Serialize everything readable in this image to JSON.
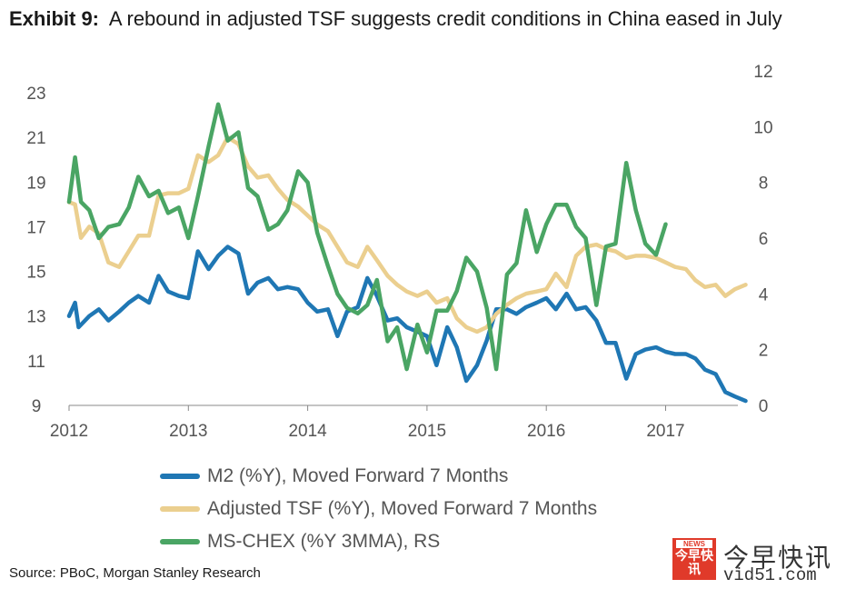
{
  "title": {
    "exhibit": "Exhibit 9:",
    "text": "A rebound in adjusted TSF suggests credit conditions in China eased in July"
  },
  "source": "Source: PBoC, Morgan Stanley Research",
  "watermark": {
    "chinese": "今早快讯",
    "url": "vid51.com",
    "badge_top": "NEWS",
    "badge_text": "今早快讯"
  },
  "chart_data": {
    "type": "line",
    "title": "A rebound in adjusted TSF suggests credit conditions in China eased in July",
    "xlabel": "",
    "ylabel": "",
    "x_ticks": [
      "2012",
      "2013",
      "2014",
      "2015",
      "2016",
      "2017"
    ],
    "xlim": [
      2012.0,
      2017.7
    ],
    "ylim_left": [
      9,
      23
    ],
    "ylim_right": [
      0,
      12
    ],
    "y_ticks_left": [
      9,
      11,
      13,
      15,
      17,
      19,
      21,
      23
    ],
    "y_ticks_right": [
      0,
      2,
      4,
      6,
      8,
      10,
      12
    ],
    "grid": false,
    "legend_position": "bottom",
    "series": [
      {
        "name": "M2 (%Y), Moved Forward 7 Months",
        "axis": "left",
        "color": "#1f77b4",
        "x": [
          2012.0,
          2012.05,
          2012.08,
          2012.17,
          2012.25,
          2012.33,
          2012.42,
          2012.5,
          2012.58,
          2012.67,
          2012.75,
          2012.83,
          2012.92,
          2013.0,
          2013.08,
          2013.17,
          2013.25,
          2013.33,
          2013.42,
          2013.5,
          2013.58,
          2013.67,
          2013.75,
          2013.83,
          2013.92,
          2014.0,
          2014.08,
          2014.17,
          2014.25,
          2014.33,
          2014.42,
          2014.5,
          2014.58,
          2014.67,
          2014.75,
          2014.83,
          2014.92,
          2015.0,
          2015.08,
          2015.17,
          2015.25,
          2015.33,
          2015.42,
          2015.5,
          2015.58,
          2015.67,
          2015.75,
          2015.83,
          2015.92,
          2016.0,
          2016.08,
          2016.17,
          2016.25,
          2016.33,
          2016.42,
          2016.5,
          2016.58,
          2016.67,
          2016.75,
          2016.83,
          2016.92,
          2017.0,
          2017.08,
          2017.17,
          2017.25,
          2017.33,
          2017.42,
          2017.5,
          2017.58,
          2017.67
        ],
        "y": [
          13.0,
          13.6,
          12.5,
          13.0,
          13.3,
          12.8,
          13.2,
          13.6,
          13.9,
          13.6,
          14.8,
          14.1,
          13.9,
          13.8,
          15.9,
          15.1,
          15.7,
          16.1,
          15.8,
          14.0,
          14.5,
          14.7,
          14.2,
          14.3,
          14.2,
          13.6,
          13.2,
          13.3,
          12.1,
          13.2,
          13.4,
          14.7,
          13.9,
          12.8,
          12.9,
          12.5,
          12.3,
          12.1,
          10.8,
          12.5,
          11.6,
          10.1,
          10.8,
          11.9,
          13.3,
          13.3,
          13.1,
          13.4,
          13.6,
          13.8,
          13.3,
          14.0,
          13.3,
          13.4,
          12.8,
          11.8,
          11.8,
          10.2,
          11.3,
          11.5,
          11.6,
          11.4,
          11.3,
          11.3,
          11.1,
          10.6,
          10.4,
          9.6,
          9.4,
          9.2
        ]
      },
      {
        "name": "Adjusted TSF (%Y), Moved Forward 7 Months",
        "axis": "left",
        "color": "#ebcf8f",
        "x": [
          2012.0,
          2012.05,
          2012.1,
          2012.17,
          2012.25,
          2012.33,
          2012.42,
          2012.5,
          2012.58,
          2012.67,
          2012.75,
          2012.83,
          2012.92,
          2013.0,
          2013.08,
          2013.17,
          2013.25,
          2013.33,
          2013.42,
          2013.5,
          2013.58,
          2013.67,
          2013.75,
          2013.83,
          2013.92,
          2014.0,
          2014.08,
          2014.17,
          2014.25,
          2014.33,
          2014.42,
          2014.5,
          2014.58,
          2014.67,
          2014.75,
          2014.83,
          2014.92,
          2015.0,
          2015.08,
          2015.17,
          2015.25,
          2015.33,
          2015.42,
          2015.5,
          2015.58,
          2015.67,
          2015.75,
          2015.83,
          2015.92,
          2016.0,
          2016.08,
          2016.17,
          2016.25,
          2016.33,
          2016.42,
          2016.5,
          2016.58,
          2016.67,
          2016.75,
          2016.83,
          2016.92,
          2017.0,
          2017.08,
          2017.17,
          2017.25,
          2017.33,
          2017.42,
          2017.5,
          2017.58,
          2017.67
        ],
        "y": [
          18.1,
          18.0,
          16.5,
          17.0,
          16.7,
          15.4,
          15.2,
          15.9,
          16.6,
          16.6,
          18.4,
          18.5,
          18.5,
          18.7,
          20.2,
          19.9,
          20.2,
          21.0,
          20.7,
          19.7,
          19.2,
          19.3,
          18.7,
          18.2,
          17.9,
          17.5,
          17.1,
          16.8,
          16.1,
          15.4,
          15.2,
          16.1,
          15.5,
          14.8,
          14.4,
          14.1,
          13.9,
          14.1,
          13.6,
          13.8,
          12.9,
          12.5,
          12.3,
          12.5,
          13.1,
          13.5,
          13.8,
          14.0,
          14.1,
          14.2,
          14.9,
          14.3,
          15.7,
          16.1,
          16.2,
          16.0,
          15.9,
          15.6,
          15.7,
          15.7,
          15.6,
          15.4,
          15.2,
          15.1,
          14.6,
          14.3,
          14.4,
          13.9,
          14.2,
          14.4
        ]
      },
      {
        "name": "MS-CHEX (%Y 3MMA), RS",
        "axis": "right",
        "color": "#4aa564",
        "x": [
          2012.0,
          2012.05,
          2012.1,
          2012.17,
          2012.25,
          2012.33,
          2012.42,
          2012.5,
          2012.58,
          2012.67,
          2012.75,
          2012.83,
          2012.92,
          2013.0,
          2013.08,
          2013.17,
          2013.25,
          2013.33,
          2013.42,
          2013.5,
          2013.58,
          2013.67,
          2013.75,
          2013.83,
          2013.92,
          2014.0,
          2014.08,
          2014.17,
          2014.25,
          2014.33,
          2014.42,
          2014.5,
          2014.58,
          2014.67,
          2014.75,
          2014.83,
          2014.92,
          2015.0,
          2015.08,
          2015.17,
          2015.25,
          2015.33,
          2015.42,
          2015.5,
          2015.58,
          2015.67,
          2015.75,
          2015.83,
          2015.92,
          2016.0,
          2016.08,
          2016.17,
          2016.25,
          2016.33,
          2016.42,
          2016.5,
          2016.58,
          2016.67,
          2016.75,
          2016.83,
          2016.92,
          2017.0
        ],
        "y": [
          7.3,
          8.9,
          7.3,
          7.0,
          6.0,
          6.4,
          6.5,
          7.1,
          8.2,
          7.5,
          7.7,
          6.9,
          7.1,
          6.0,
          7.5,
          9.3,
          10.8,
          9.5,
          9.8,
          7.8,
          7.5,
          6.3,
          6.5,
          7.0,
          8.4,
          8.0,
          6.2,
          5.0,
          4.0,
          3.5,
          3.3,
          3.6,
          4.5,
          2.3,
          2.8,
          1.3,
          2.9,
          1.9,
          3.4,
          3.4,
          4.1,
          5.3,
          4.8,
          3.5,
          1.3,
          4.7,
          5.1,
          7.0,
          5.5,
          6.5,
          7.2,
          7.2,
          6.4,
          6.0,
          3.6,
          5.7,
          5.8,
          8.7,
          7.0,
          5.8,
          5.4,
          6.5
        ]
      }
    ]
  }
}
